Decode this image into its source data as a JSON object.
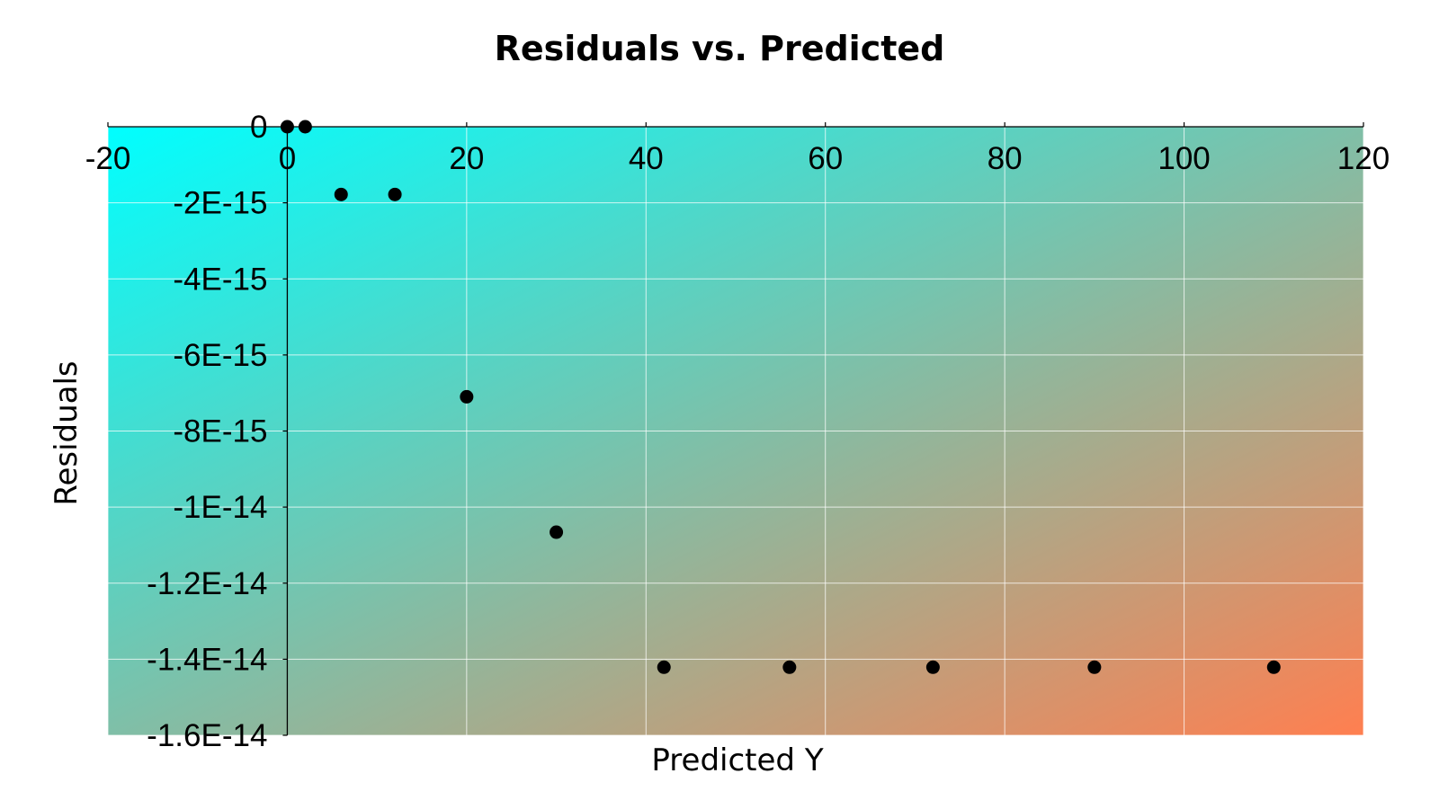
{
  "chart_data": {
    "type": "scatter",
    "title": "Residuals vs. Predicted",
    "xlabel": "Predicted Y",
    "ylabel": "Residuals",
    "xlim": [
      -20,
      120
    ],
    "ylim": [
      -1.6e-14,
      0
    ],
    "x_ticks": [
      -20,
      0,
      20,
      40,
      60,
      80,
      100,
      120
    ],
    "x_tick_labels": [
      "-20",
      "0",
      "20",
      "40",
      "60",
      "80",
      "100",
      "120"
    ],
    "y_ticks": [
      0,
      -2e-15,
      -4e-15,
      -6e-15,
      -8e-15,
      -1e-14,
      -1.2e-14,
      -1.4e-14,
      -1.6e-14
    ],
    "y_tick_labels": [
      "0",
      "-2E-15",
      "-4E-15",
      "-6E-15",
      "-8E-15",
      "-1E-14",
      "-1.2E-14",
      "-1.4E-14",
      "-1.6E-14"
    ],
    "grid": true,
    "x_axis_position": "top",
    "background_gradient": [
      "#00ffff",
      "#ff7f50"
    ],
    "marker_color": "#000000",
    "series": [
      {
        "x": [
          0,
          2,
          6,
          12,
          20,
          30,
          42,
          56,
          72,
          90,
          110
        ],
        "y": [
          0,
          0,
          -1.78e-15,
          -1.78e-15,
          -7.1e-15,
          -1.066e-14,
          -1.421e-14,
          -1.421e-14,
          -1.421e-14,
          -1.421e-14,
          -1.421e-14
        ]
      }
    ]
  }
}
